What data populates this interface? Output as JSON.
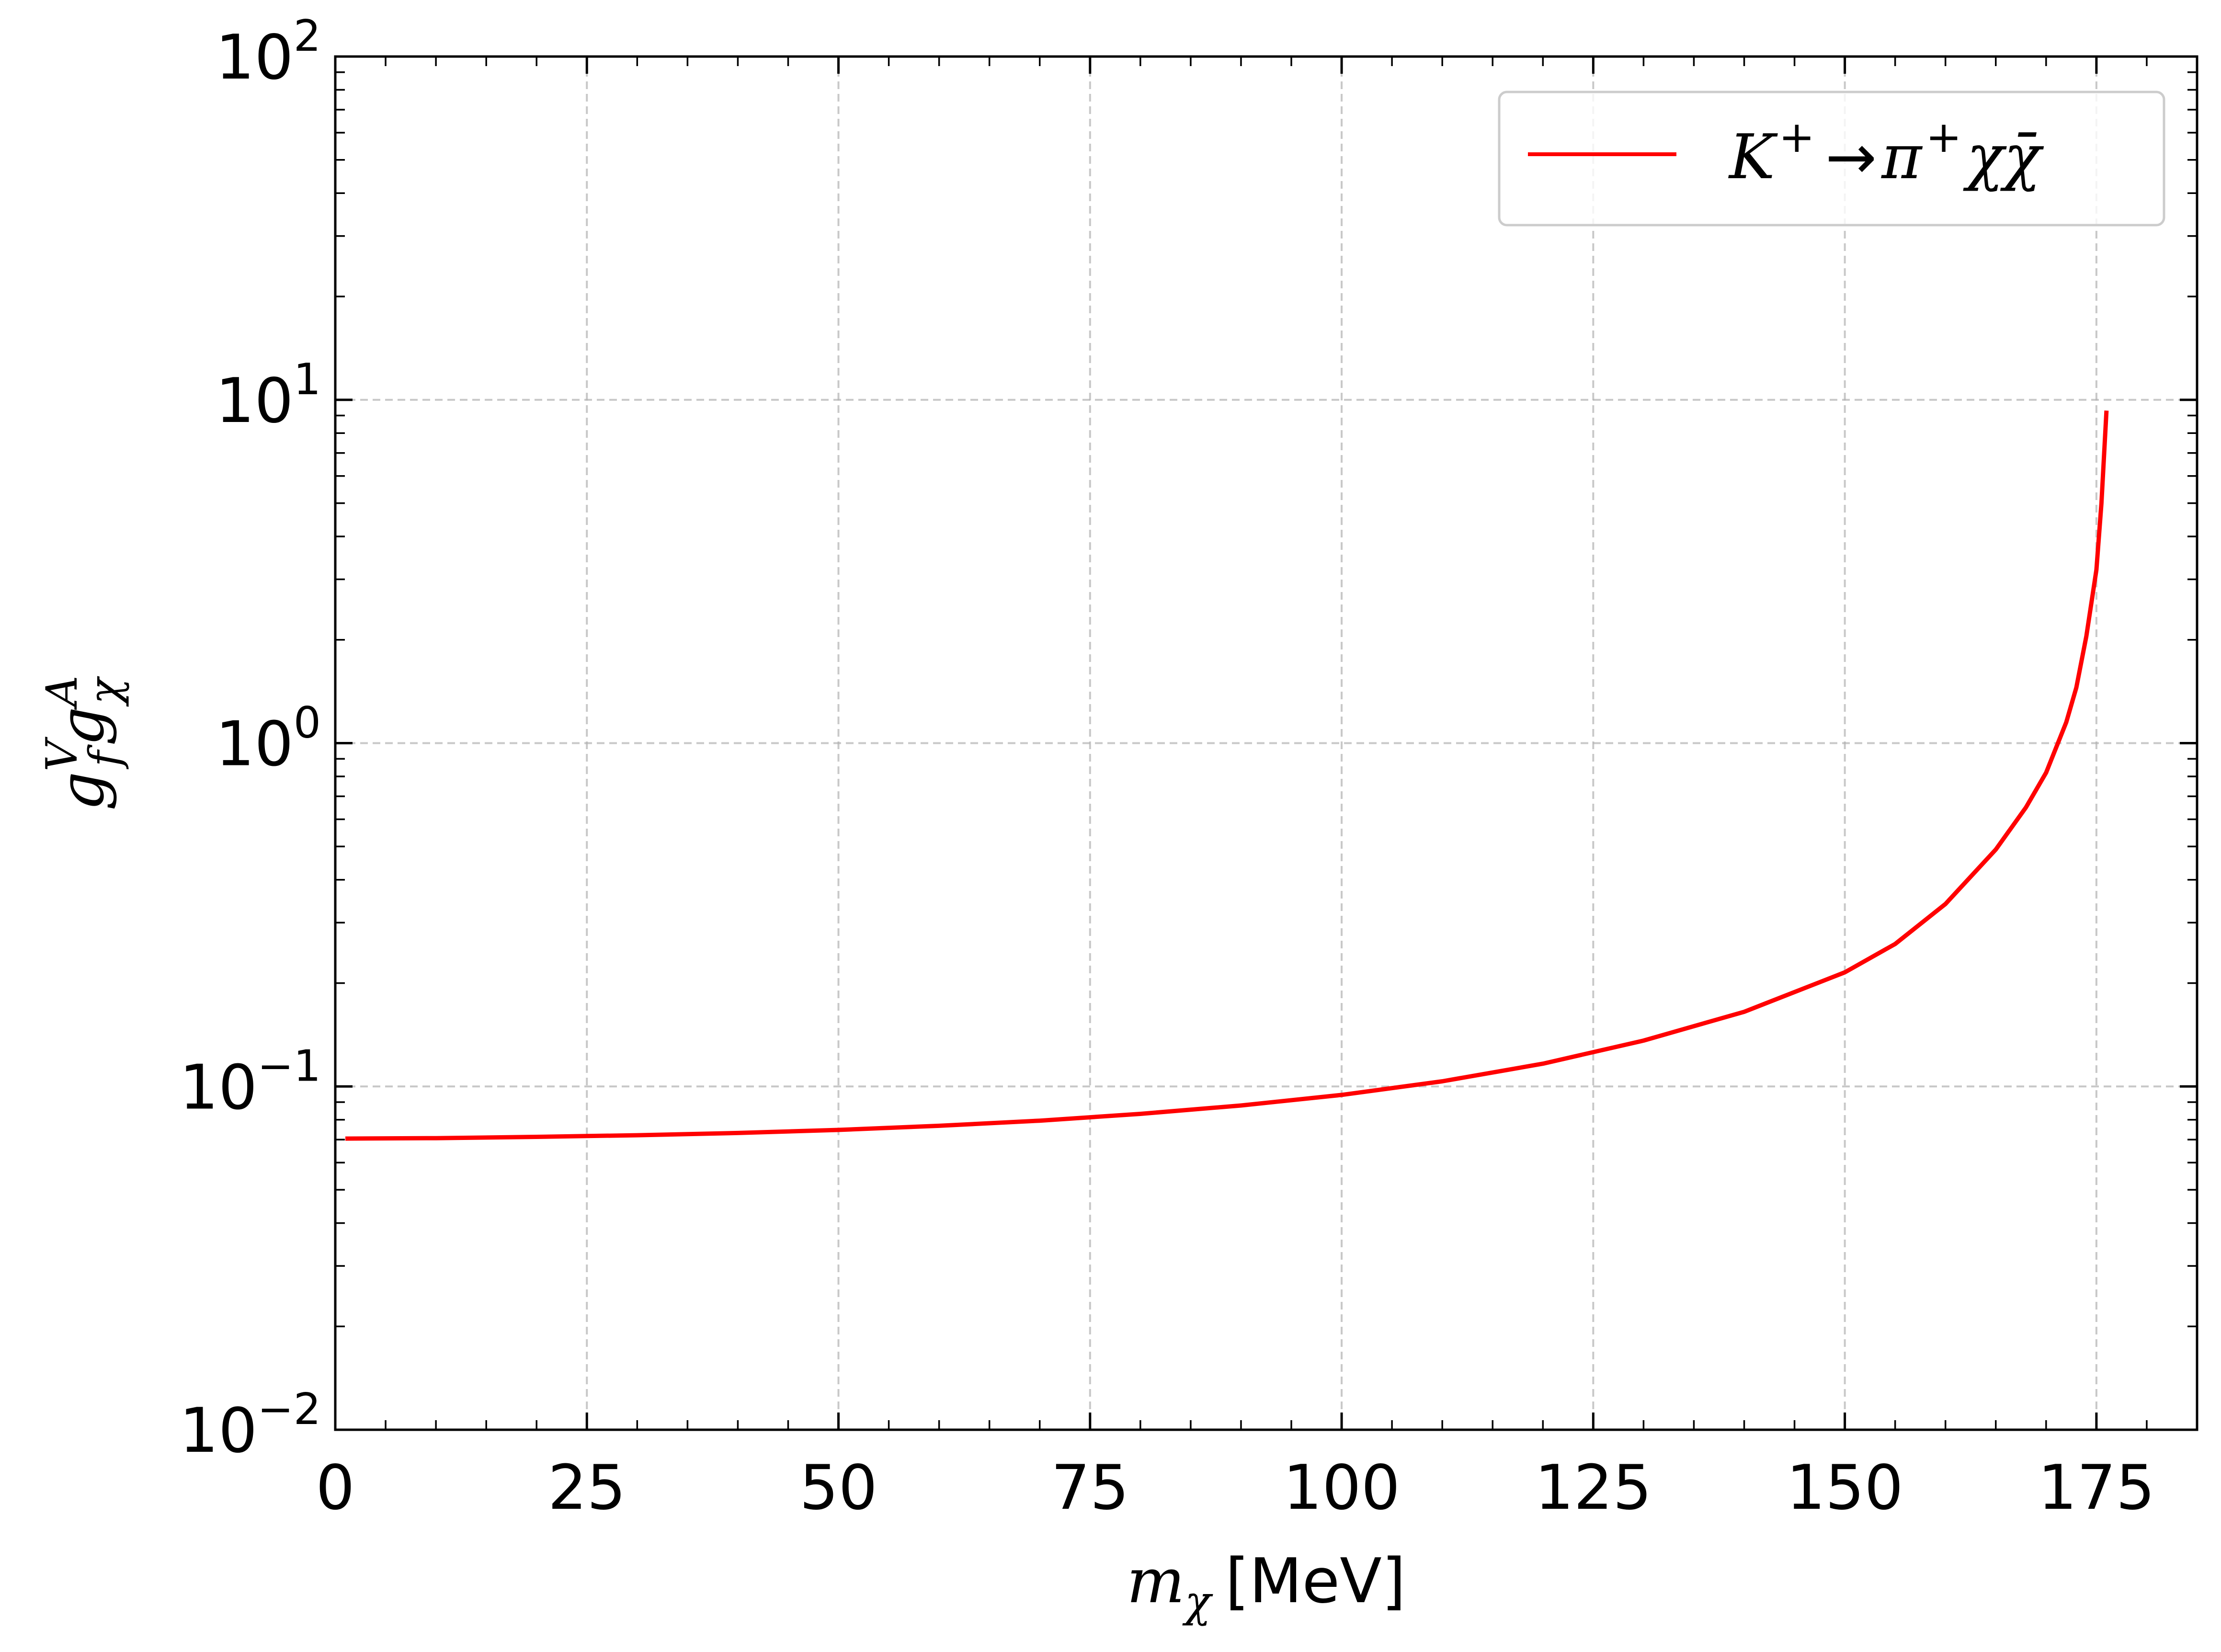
{
  "chart_data": {
    "type": "line",
    "xscale": "linear",
    "yscale": "log",
    "xlim": [
      0,
      185
    ],
    "ylim": [
      0.01,
      100
    ],
    "grid": true,
    "legend_placement": "upper-right",
    "x_ticks": [
      0,
      25,
      50,
      75,
      100,
      125,
      150,
      175
    ],
    "x_tick_labels": [
      "0",
      "25",
      "50",
      "75",
      "100",
      "125",
      "150",
      "175"
    ],
    "y_ticks": [
      0.01,
      0.1,
      1,
      10,
      100
    ],
    "y_tick_labels": [
      {
        "base": "10",
        "exp": "−2"
      },
      {
        "base": "10",
        "exp": "−1"
      },
      {
        "base": "10",
        "exp": "0"
      },
      {
        "base": "10",
        "exp": "1"
      },
      {
        "base": "10",
        "exp": "2"
      }
    ],
    "xlabel": {
      "symbol": "m",
      "sub": "χ",
      "unit": "[MeV]"
    },
    "ylabel": {
      "g1": "g",
      "sup1": "V",
      "sub1": "f",
      "g2": "g",
      "sup2": "A",
      "sub2": "χ"
    },
    "series": [
      {
        "name": "K⁺ → π⁺ χχ̄",
        "legend": {
          "k": "K",
          "ksup": "+",
          "arrow": "→",
          "pi": "π",
          "pisup": "+",
          "chi": "χ",
          "chibar": "χ̄"
        },
        "color": "#ff0000",
        "x": [
          1,
          10,
          20,
          30,
          40,
          50,
          60,
          70,
          80,
          90,
          100,
          110,
          120,
          130,
          140,
          150,
          155,
          160,
          165,
          168,
          170,
          172,
          173,
          174,
          175,
          175.5,
          176
        ],
        "y": [
          0.0705,
          0.0707,
          0.0713,
          0.0721,
          0.0732,
          0.0747,
          0.0768,
          0.0795,
          0.0832,
          0.088,
          0.0945,
          0.1035,
          0.1165,
          0.136,
          0.165,
          0.215,
          0.26,
          0.34,
          0.49,
          0.65,
          0.82,
          1.15,
          1.45,
          2.05,
          3.2,
          5.0,
          9.3
        ]
      }
    ]
  }
}
